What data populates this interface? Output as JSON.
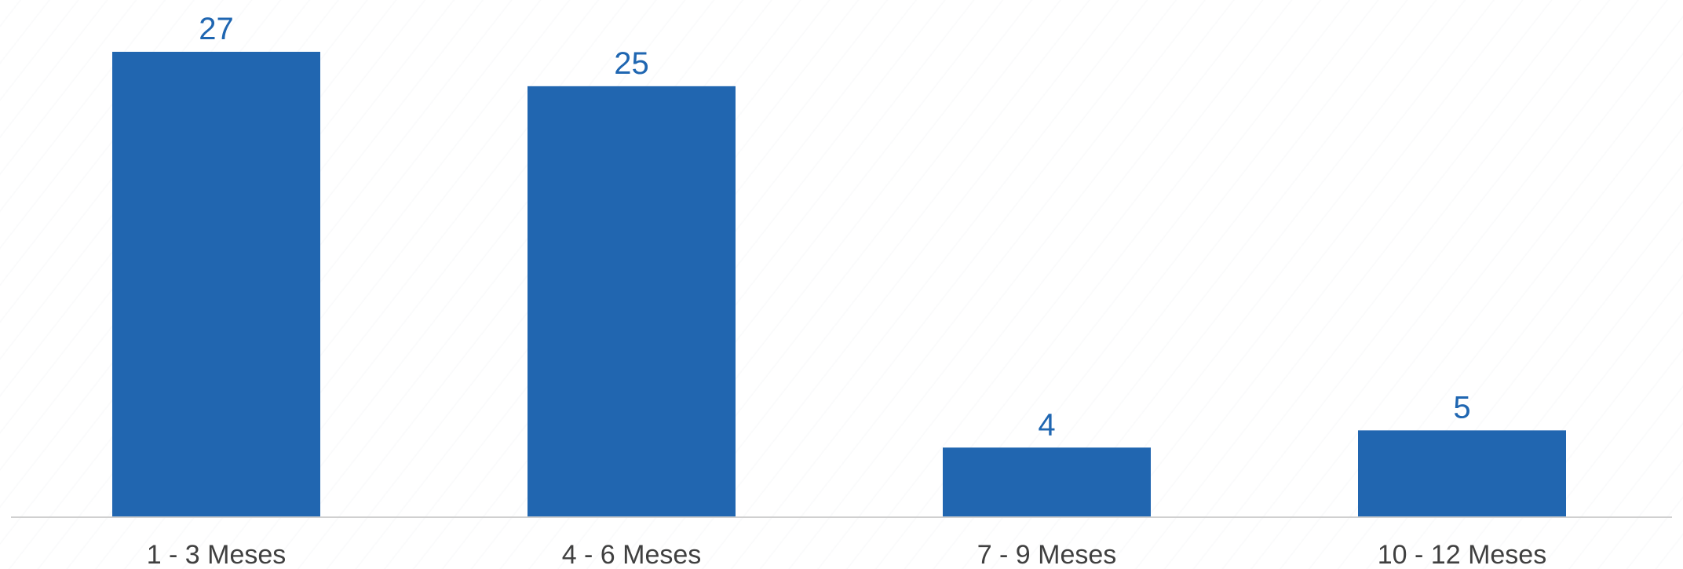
{
  "chart_data": {
    "type": "bar",
    "categories": [
      "1 - 3 Meses",
      "4 - 6 Meses",
      "7 - 9 Meses",
      "10 - 12 Meses"
    ],
    "values": [
      27,
      25,
      4,
      5
    ],
    "title": "",
    "xlabel": "",
    "ylabel": "",
    "ylim": [
      0,
      27
    ],
    "grid": false,
    "legend": "none",
    "colors": {
      "bar": "#2166b0",
      "data_label": "#1f66b1",
      "axis_line": "#d0d0d0",
      "category_label": "#404040"
    }
  }
}
